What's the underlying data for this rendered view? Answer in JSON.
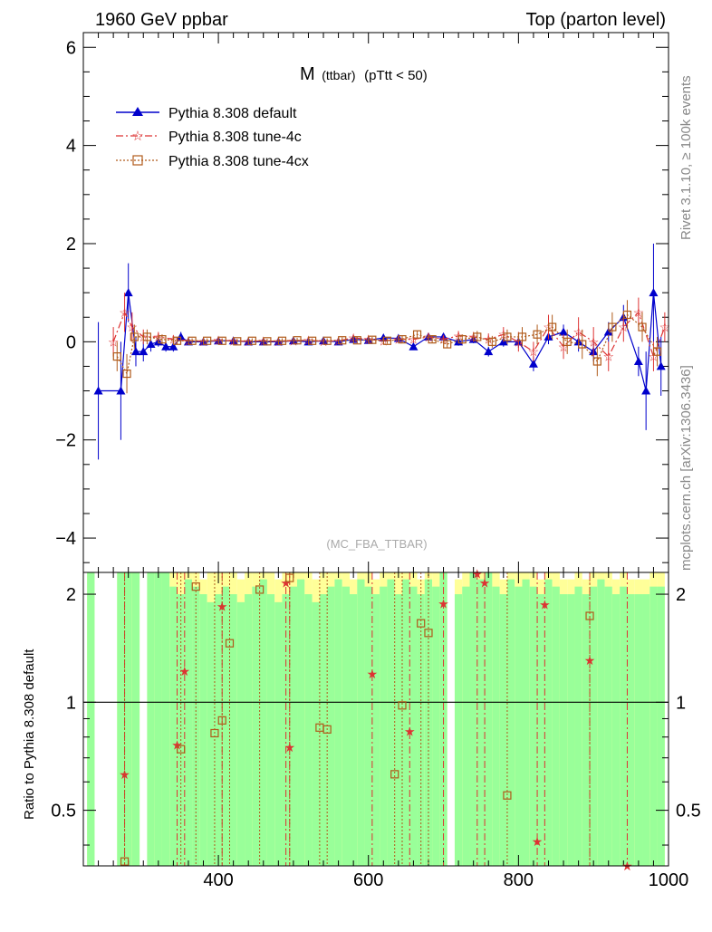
{
  "header": {
    "left": "1960 GeV ppbar",
    "right": "Top (parton level)"
  },
  "side_labels": {
    "rivet": "Rivet 3.1.10, ≥ 100k events",
    "mcplots": "mcplots.cern.ch [arXiv:1306.3436]"
  },
  "chart_data": [
    {
      "type": "line",
      "title": "M (ttbar) (pTtt < 50)",
      "title_main": "M",
      "title_sub": "(ttbar)",
      "title_rest": "(pTtt < 50)",
      "watermark": "(MC_FBA_TTBAR)",
      "xlim": [
        220,
        1000
      ],
      "ylim": [
        -4.7,
        6.3
      ],
      "y_ticks": [
        -4,
        -2,
        0,
        2,
        4,
        6
      ],
      "y_tick_labels": [
        "−4",
        "−2",
        "0",
        "2",
        "4",
        "6"
      ],
      "legend_position": "top-left",
      "series": [
        {
          "name": "Pythia 8.308 default",
          "color": "#0000cc",
          "marker": "triangle",
          "x": [
            240,
            270,
            280,
            290,
            300,
            310,
            320,
            330,
            340,
            350,
            360,
            380,
            400,
            420,
            440,
            460,
            480,
            500,
            520,
            540,
            560,
            580,
            600,
            620,
            640,
            660,
            680,
            700,
            720,
            740,
            760,
            780,
            800,
            820,
            840,
            860,
            880,
            900,
            920,
            940,
            960,
            970,
            980,
            990
          ],
          "y": [
            -1.0,
            -1.0,
            1.0,
            -0.2,
            -0.2,
            -0.05,
            0.0,
            -0.1,
            -0.1,
            0.1,
            0.0,
            0.0,
            0.02,
            0.02,
            0.0,
            0.0,
            0.0,
            0.02,
            0.0,
            0.02,
            0.0,
            0.05,
            0.03,
            0.08,
            0.07,
            -0.1,
            0.1,
            0.1,
            0.0,
            0.05,
            -0.2,
            0.0,
            0.0,
            -0.45,
            0.1,
            0.2,
            0.0,
            -0.2,
            0.2,
            0.5,
            -0.4,
            -1.0,
            1.0,
            -0.5
          ],
          "err": [
            1.4,
            1.0,
            0.6,
            0.3,
            0.2,
            0.15,
            0.1,
            0.1,
            0.1,
            0.1,
            0.05,
            0.05,
            0.05,
            0.05,
            0.05,
            0.05,
            0.05,
            0.05,
            0.05,
            0.05,
            0.05,
            0.05,
            0.05,
            0.05,
            0.06,
            0.06,
            0.06,
            0.07,
            0.08,
            0.08,
            0.1,
            0.1,
            0.12,
            0.15,
            0.15,
            0.15,
            0.2,
            0.2,
            0.2,
            0.25,
            0.3,
            0.8,
            1.0,
            0.6
          ]
        },
        {
          "name": "Pythia 8.308 tune-4c",
          "color": "#dd3333",
          "marker": "star",
          "x": [
            260,
            275,
            285,
            300,
            320,
            340,
            360,
            380,
            400,
            420,
            440,
            460,
            480,
            500,
            520,
            540,
            560,
            580,
            600,
            620,
            640,
            660,
            680,
            700,
            720,
            740,
            760,
            780,
            800,
            820,
            840,
            860,
            880,
            900,
            920,
            940,
            960,
            980,
            995
          ],
          "y": [
            0.0,
            0.6,
            0.3,
            0.1,
            0.1,
            0.05,
            0.02,
            0.01,
            0.03,
            0.02,
            0.01,
            0.02,
            0.01,
            0.02,
            0.03,
            0.01,
            0.02,
            0.08,
            0.05,
            0.02,
            0.05,
            0.05,
            0.1,
            0.05,
            0.12,
            0.1,
            0.05,
            0.15,
            0.0,
            -0.2,
            0.3,
            -0.1,
            0.2,
            0.0,
            -0.3,
            0.3,
            0.6,
            -0.3,
            0.3
          ],
          "err": [
            0.3,
            0.4,
            0.3,
            0.15,
            0.1,
            0.08,
            0.05,
            0.05,
            0.05,
            0.05,
            0.05,
            0.05,
            0.05,
            0.05,
            0.05,
            0.05,
            0.05,
            0.06,
            0.06,
            0.06,
            0.06,
            0.07,
            0.08,
            0.08,
            0.1,
            0.1,
            0.12,
            0.15,
            0.2,
            0.2,
            0.25,
            0.25,
            0.3,
            0.3,
            0.3,
            0.3,
            0.3,
            0.3,
            0.3
          ]
        },
        {
          "name": "Pythia 8.308 tune-4cx",
          "color": "#b05a1a",
          "marker": "square",
          "x": [
            265,
            278,
            288,
            305,
            325,
            345,
            365,
            385,
            405,
            425,
            445,
            465,
            485,
            505,
            525,
            545,
            565,
            585,
            605,
            625,
            645,
            665,
            685,
            705,
            725,
            745,
            765,
            785,
            805,
            825,
            845,
            865,
            885,
            905,
            925,
            945,
            965,
            985
          ],
          "y": [
            -0.3,
            -0.65,
            0.1,
            0.1,
            0.05,
            0.02,
            0.02,
            0.02,
            0.02,
            0.01,
            0.02,
            0.01,
            0.02,
            0.03,
            0.02,
            0.02,
            0.03,
            0.03,
            0.04,
            0.02,
            0.05,
            0.15,
            0.05,
            -0.05,
            0.05,
            0.1,
            0.0,
            0.1,
            0.1,
            0.15,
            0.3,
            0.0,
            -0.05,
            -0.4,
            0.3,
            0.55,
            0.3,
            -0.2
          ],
          "err": [
            0.3,
            0.4,
            0.25,
            0.15,
            0.1,
            0.08,
            0.05,
            0.05,
            0.05,
            0.05,
            0.05,
            0.05,
            0.05,
            0.05,
            0.05,
            0.05,
            0.06,
            0.06,
            0.06,
            0.06,
            0.07,
            0.07,
            0.08,
            0.08,
            0.1,
            0.12,
            0.12,
            0.15,
            0.2,
            0.2,
            0.25,
            0.25,
            0.3,
            0.3,
            0.3,
            0.3,
            0.3,
            0.3
          ]
        }
      ]
    },
    {
      "type": "line",
      "ylabel": "Ratio to Pythia 8.308 default",
      "xlim": [
        220,
        1000
      ],
      "ylim": [
        0.35,
        2.3
      ],
      "x_ticks": [
        400,
        600,
        800,
        1000
      ],
      "x_tick_labels": [
        "400",
        "600",
        "800",
        "1000"
      ],
      "y_ticks": [
        0.5,
        1,
        2
      ],
      "y_tick_labels": [
        "0.5",
        "1",
        "2"
      ],
      "reference_line": 1,
      "band_colors": {
        "green": "#99ff99",
        "yellow": "#ffff99"
      },
      "bands": {
        "x": [
          230,
          250,
          270,
          280,
          290,
          300,
          310,
          320,
          330,
          340,
          350,
          360,
          370,
          380,
          390,
          400,
          410,
          420,
          430,
          440,
          450,
          460,
          470,
          480,
          490,
          500,
          510,
          520,
          530,
          540,
          550,
          560,
          570,
          580,
          590,
          600,
          610,
          620,
          630,
          640,
          650,
          660,
          670,
          680,
          690,
          700,
          710,
          720,
          730,
          740,
          750,
          760,
          770,
          780,
          790,
          800,
          810,
          820,
          830,
          840,
          850,
          860,
          870,
          880,
          890,
          900,
          910,
          920,
          930,
          940,
          950,
          960,
          970,
          980,
          990
        ],
        "green_hi": [
          2.3,
          0,
          2.3,
          2.3,
          2.3,
          0,
          2.3,
          2.3,
          2.3,
          2.1,
          2.0,
          2.2,
          2.1,
          2.0,
          1.9,
          2.0,
          2.1,
          2.0,
          1.9,
          2.0,
          2.1,
          2.2,
          2.0,
          1.9,
          2.0,
          2.1,
          2.2,
          2.0,
          1.9,
          2.0,
          2.1,
          2.2,
          2.1,
          2.0,
          2.2,
          2.1,
          2.0,
          2.1,
          2.2,
          2.0,
          2.2,
          2.1,
          2.0,
          2.2,
          2.1,
          2.3,
          0,
          2.0,
          2.1,
          2.3,
          2.2,
          2.3,
          2.1,
          2.0,
          2.2,
          2.1,
          2.2,
          2.1,
          2.0,
          2.2,
          2.1,
          2.0,
          2.0,
          2.1,
          2.0,
          2.1,
          2.2,
          2.1,
          2.0,
          2.1,
          2.0,
          2.0,
          2.0,
          2.1,
          2.1
        ],
        "yellow_hi": [
          2.3,
          0,
          2.3,
          2.3,
          2.3,
          0,
          2.3,
          2.3,
          2.3,
          2.3,
          2.3,
          2.3,
          2.3,
          2.2,
          2.3,
          2.3,
          2.3,
          2.3,
          2.2,
          2.3,
          2.3,
          2.3,
          2.3,
          2.2,
          2.3,
          2.3,
          2.3,
          2.3,
          2.2,
          2.3,
          2.3,
          2.3,
          2.3,
          2.2,
          2.3,
          2.3,
          2.2,
          2.3,
          2.3,
          2.3,
          2.3,
          2.3,
          2.2,
          2.3,
          2.3,
          2.3,
          0,
          2.2,
          2.3,
          2.3,
          2.3,
          2.3,
          2.3,
          2.2,
          2.3,
          2.3,
          2.3,
          2.3,
          2.2,
          2.3,
          2.3,
          2.2,
          2.2,
          2.3,
          2.2,
          2.3,
          2.3,
          2.3,
          2.2,
          2.3,
          2.2,
          2.2,
          2.2,
          2.3,
          2.3
        ]
      },
      "series": [
        {
          "name": "Pythia 8.308 tune-4c",
          "color": "#dd3333",
          "marker": "star",
          "x": [
            275,
            345,
            355,
            405,
            490,
            495,
            605,
            655,
            700,
            745,
            755,
            825,
            835,
            895,
            945
          ],
          "y": [
            0.63,
            0.76,
            1.22,
            1.85,
            2.15,
            0.75,
            1.2,
            0.83,
            1.88,
            2.28,
            2.15,
            0.41,
            1.87,
            1.31,
            0.34
          ]
        },
        {
          "name": "Pythia 8.308 tune-4cx",
          "color": "#b05a1a",
          "marker": "square",
          "x": [
            275,
            350,
            370,
            395,
            405,
            415,
            455,
            495,
            535,
            545,
            635,
            645,
            670,
            680,
            785,
            895
          ],
          "y": [
            0.36,
            0.74,
            2.1,
            0.82,
            0.89,
            1.46,
            2.06,
            2.22,
            0.85,
            0.84,
            0.63,
            0.98,
            1.66,
            1.56,
            0.55,
            1.74
          ]
        }
      ]
    }
  ]
}
